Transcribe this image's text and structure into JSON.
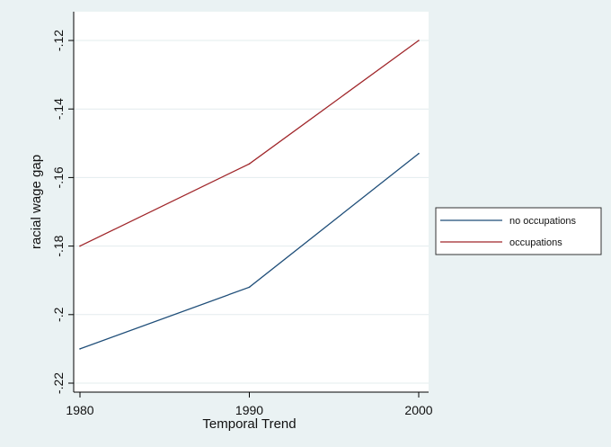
{
  "chart_data": {
    "type": "line",
    "x": [
      1980,
      1990,
      2000
    ],
    "series": [
      {
        "name": "no occupations",
        "values": [
          -0.21,
          -0.192,
          -0.153
        ],
        "color": "#1f4e79"
      },
      {
        "name": "occupations",
        "values": [
          -0.18,
          -0.156,
          -0.12
        ],
        "color": "#a0262a"
      }
    ],
    "xlabel": "Temporal Trend",
    "ylabel": "racial wage gap",
    "xlim": [
      1980,
      2000
    ],
    "ylim": [
      -0.22,
      -0.12
    ],
    "xticks": [
      1980,
      1990,
      2000
    ],
    "xtick_labels": [
      "1980",
      "1990",
      "2000"
    ],
    "yticks": [
      -0.22,
      -0.2,
      -0.18,
      -0.16,
      -0.14,
      -0.12
    ],
    "ytick_labels": [
      "-.22",
      "-.2",
      "-.18",
      "-.16",
      "-.14",
      "-.12"
    ],
    "grid": true,
    "legend_position": "right",
    "background_color": "#eaf2f3",
    "plot_background_color": "#ffffff",
    "gridline_color": "#e3ecee"
  }
}
